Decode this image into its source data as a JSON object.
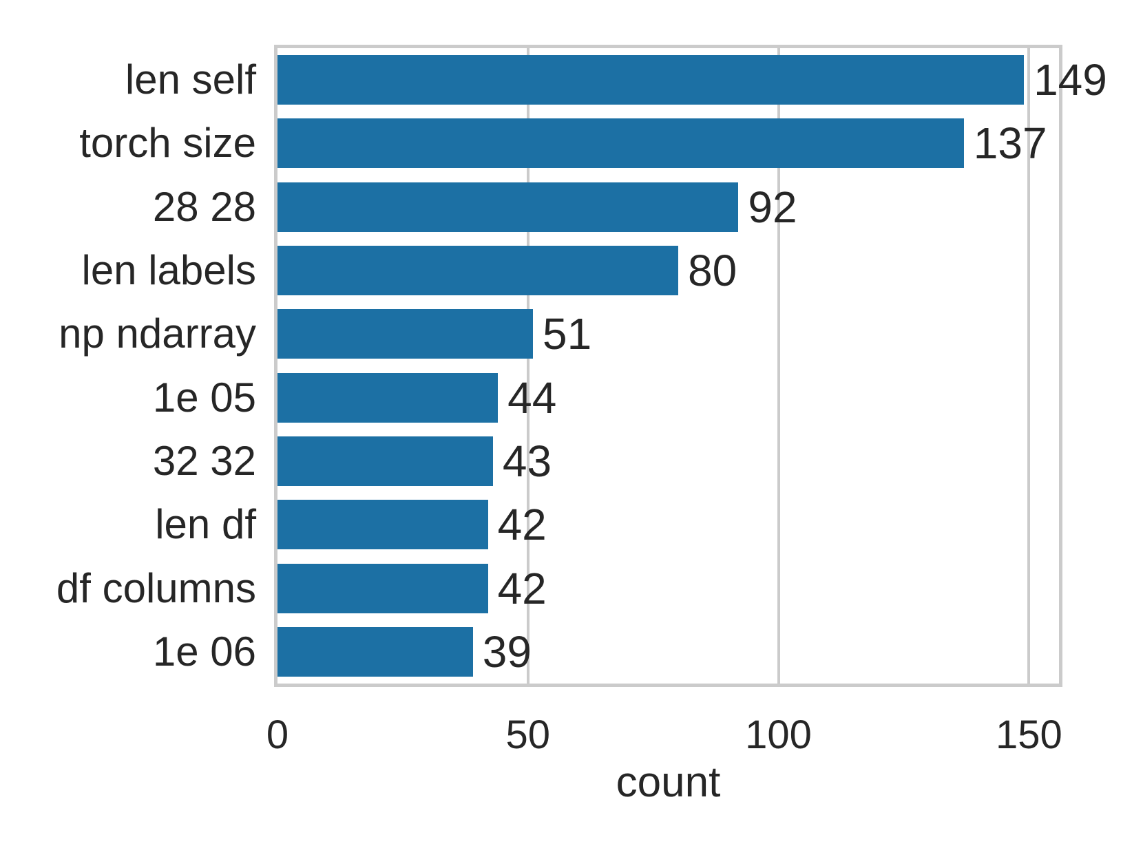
{
  "chart_data": {
    "type": "bar",
    "orientation": "horizontal",
    "title": "",
    "xlabel": "count",
    "ylabel": "",
    "categories": [
      "len self",
      "torch size",
      "28 28",
      "len labels",
      "np ndarray",
      "1e 05",
      "32 32",
      "len df",
      "df columns",
      "1e 06"
    ],
    "values": [
      149,
      137,
      92,
      80,
      51,
      44,
      43,
      42,
      42,
      39
    ],
    "bar_labels": [
      "149",
      "137",
      "92",
      "80",
      "51",
      "44",
      "43",
      "42",
      "42",
      "39"
    ],
    "xlim": [
      0,
      156
    ],
    "xticks": [
      0,
      50,
      100,
      150
    ],
    "grid": "vertical gridlines at 50, 100, 150; full box spines",
    "legend": "none",
    "colors": {
      "bar": "#1C70A4",
      "grid": "#CBCBCB",
      "text": "#262626",
      "background": "#FFFFFF"
    }
  }
}
